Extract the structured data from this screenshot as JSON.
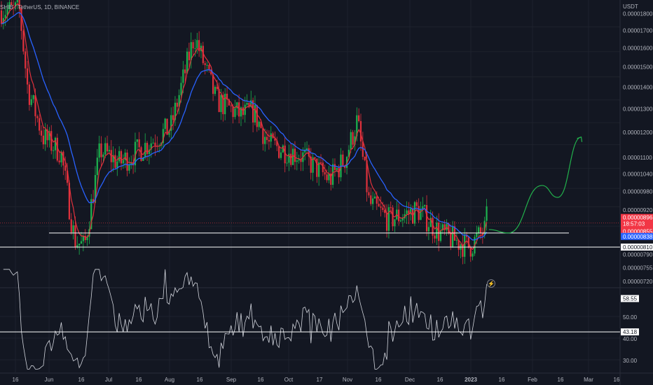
{
  "header": {
    "title": "SHIB / TetherUS, 1D, BINANCE"
  },
  "colors": {
    "bg": "#131722",
    "up": "#26a69a",
    "up_green": "#1db34f",
    "down": "#e0313c",
    "ma_fast": "#e0313c",
    "ma_slow": "#2962ff",
    "rsi": "#d1d4dc",
    "projection": "#22b14c",
    "grid": "#1e222d",
    "text": "#b2b5be"
  },
  "price_axis": {
    "unit": "USDT",
    "ticks": [
      "0.00001800",
      "0.00001700",
      "0.00001600",
      "0.00001500",
      "0.00001400",
      "0.00001300",
      "0.00001200",
      "0.00001100",
      "0.00001040",
      "0.00000980",
      "0.00000920",
      "0.00000855",
      "0.00000810",
      "0.00000790",
      "0.00000755",
      "0.00000720"
    ]
  },
  "price_tags": {
    "last": "0.00000896",
    "countdown": "18:57:03",
    "ma_fast": "0.00000855",
    "ma_slow": "0.00000838",
    "support": "0.00000810"
  },
  "rsi_axis": {
    "ticks": [
      "50.00",
      "40.00",
      "30.00"
    ],
    "value": "58.55",
    "level": "43.18"
  },
  "time_axis": {
    "ticks": [
      "16",
      "Jun",
      "16",
      "Jul",
      "16",
      "Aug",
      "16",
      "Sep",
      "16",
      "Oct",
      "17",
      "Nov",
      "16",
      "Dec",
      "16",
      "2023",
      "16",
      "Feb",
      "16",
      "Mar",
      "16"
    ]
  },
  "chart_data": {
    "type": "candlestick",
    "title": "SHIB / TetherUS, 1D, BINANCE",
    "xlabel": "",
    "ylabel": "USDT",
    "x_range": [
      "2022-05-16",
      "2023-03-16"
    ],
    "y_range": [
      7.1e-06,
      1.85e-05
    ],
    "price_points": [
      {
        "date": "2022-05-16",
        "price": 1.82e-05
      },
      {
        "date": "2022-05-20",
        "price": 1.4e-05
      },
      {
        "date": "2022-05-28",
        "price": 1.18e-05
      },
      {
        "date": "2022-06-06",
        "price": 1.12e-05
      },
      {
        "date": "2022-06-13",
        "price": 8.3e-06
      },
      {
        "date": "2022-06-18",
        "price": 8.1e-06
      },
      {
        "date": "2022-06-26",
        "price": 1.13e-05
      },
      {
        "date": "2022-07-06",
        "price": 1.08e-05
      },
      {
        "date": "2022-07-16",
        "price": 1.13e-05
      },
      {
        "date": "2022-08-01",
        "price": 1.22e-05
      },
      {
        "date": "2022-08-13",
        "price": 1.67e-05
      },
      {
        "date": "2022-08-24",
        "price": 1.34e-05
      },
      {
        "date": "2022-09-06",
        "price": 1.27e-05
      },
      {
        "date": "2022-09-12",
        "price": 1.29e-05
      },
      {
        "date": "2022-09-20",
        "price": 1.15e-05
      },
      {
        "date": "2022-10-06",
        "price": 1.11e-05
      },
      {
        "date": "2022-10-21",
        "price": 1.02e-05
      },
      {
        "date": "2022-10-29",
        "price": 1.1e-05
      },
      {
        "date": "2022-11-04",
        "price": 1.25e-05
      },
      {
        "date": "2022-11-10",
        "price": 9.4e-06
      },
      {
        "date": "2022-11-20",
        "price": 8.9e-06
      },
      {
        "date": "2022-12-05",
        "price": 9.2e-06
      },
      {
        "date": "2022-12-16",
        "price": 8.5e-06
      },
      {
        "date": "2022-12-31",
        "price": 8.1e-06
      },
      {
        "date": "2023-01-08",
        "price": 8.6e-06
      },
      {
        "date": "2023-01-09",
        "price": 9e-06
      }
    ],
    "series": [
      {
        "type": "candlestick"
      },
      {
        "type": "moving-average",
        "color": "#e0313c"
      },
      {
        "type": "moving-average",
        "color": "#2962ff"
      },
      {
        "type": "line",
        "panel": "RSI",
        "color": "#d1d4dc"
      }
    ],
    "levels": [
      {
        "kind": "horizontal",
        "price": 8.5e-06
      },
      {
        "kind": "horizontal",
        "price": 8.1e-06
      },
      {
        "kind": "horizontal",
        "panel": "RSI",
        "value": 43.18
      }
    ],
    "projection_points": [
      {
        "date": "2023-01-10",
        "price": 8.6e-06
      },
      {
        "date": "2023-01-20",
        "price": 8.5e-06
      },
      {
        "date": "2023-02-06",
        "price": 1e-05
      },
      {
        "date": "2023-02-14",
        "price": 9.6e-06
      },
      {
        "date": "2023-02-26",
        "price": 1.18e-05
      }
    ],
    "grid": true,
    "legend": "none"
  }
}
